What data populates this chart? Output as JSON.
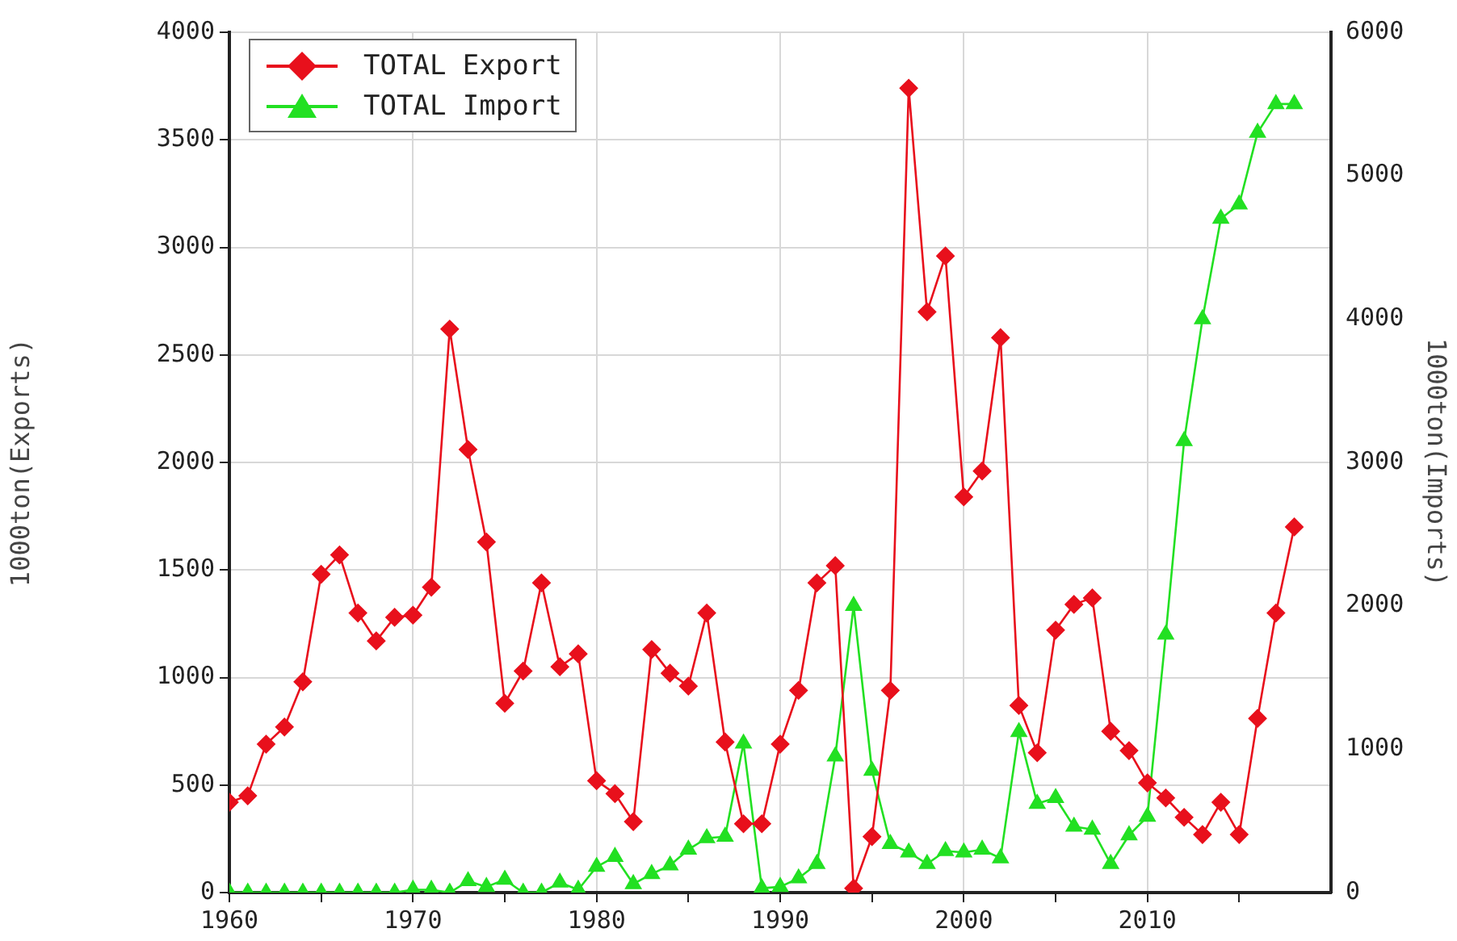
{
  "chart_data": {
    "type": "line",
    "xlabel": null,
    "ylabel": "1000ton(Exports)",
    "y2label": "1000ton(Imports)",
    "x": [
      1960,
      1961,
      1962,
      1963,
      1964,
      1965,
      1966,
      1967,
      1968,
      1969,
      1970,
      1971,
      1972,
      1973,
      1974,
      1975,
      1976,
      1977,
      1978,
      1979,
      1980,
      1981,
      1982,
      1983,
      1984,
      1985,
      1986,
      1987,
      1988,
      1989,
      1990,
      1991,
      1992,
      1993,
      1994,
      1995,
      1996,
      1997,
      1998,
      1999,
      2000,
      2001,
      2002,
      2003,
      2004,
      2005,
      2006,
      2007,
      2008,
      2009,
      2010,
      2011,
      2012,
      2013,
      2014,
      2015,
      2016,
      2017,
      2018
    ],
    "series": [
      {
        "name": "TOTAL Export",
        "color": "#e8101c",
        "marker": "diamond",
        "values": [
          420,
          450,
          690,
          770,
          980,
          1480,
          1570,
          1300,
          1170,
          1280,
          1290,
          1420,
          2620,
          2060,
          1630,
          880,
          1030,
          1440,
          1050,
          1110,
          520,
          460,
          330,
          1130,
          1020,
          960,
          1300,
          700,
          320,
          320,
          690,
          940,
          1440,
          1520,
          20,
          260,
          940,
          3740,
          2700,
          2960,
          1840,
          1960,
          2580,
          870,
          650,
          1220,
          1340,
          1370,
          750,
          660,
          510,
          440,
          350,
          270,
          420,
          270,
          810,
          1300,
          1700
        ]
      },
      {
        "name": "TOTAL Import",
        "color": "#22e022",
        "marker": "triangle",
        "axis": "y2",
        "values": [
          0,
          0,
          0,
          0,
          0,
          0,
          0,
          0,
          0,
          0,
          20,
          20,
          0,
          80,
          40,
          90,
          0,
          0,
          70,
          20,
          180,
          250,
          60,
          130,
          190,
          300,
          380,
          390,
          1040,
          30,
          40,
          100,
          200,
          950,
          2000,
          850,
          340,
          280,
          200,
          290,
          280,
          300,
          240,
          1120,
          620,
          660,
          460,
          440,
          200,
          400,
          530,
          1800,
          3150,
          4000,
          4700,
          4800,
          5300,
          5500,
          5500
        ]
      }
    ],
    "xlim": [
      1960,
      2020
    ],
    "xticks": [
      1960,
      {
        "value": 1965,
        "label": null
      },
      1970,
      {
        "value": 1975,
        "label": null
      },
      1980,
      {
        "value": 1985,
        "label": null
      },
      1990,
      {
        "value": 1995,
        "label": null
      },
      2000,
      {
        "value": 2005,
        "label": null
      },
      2010,
      {
        "value": 2015,
        "label": null
      }
    ],
    "ylim": [
      0,
      4000
    ],
    "yticks": [
      0,
      500,
      1000,
      1500,
      2000,
      2500,
      3000,
      3500,
      4000
    ],
    "y2lim": [
      0,
      6000
    ],
    "y2ticks": [
      0,
      1000,
      2000,
      3000,
      4000,
      5000,
      6000
    ],
    "grid": true,
    "legend": "top left"
  }
}
